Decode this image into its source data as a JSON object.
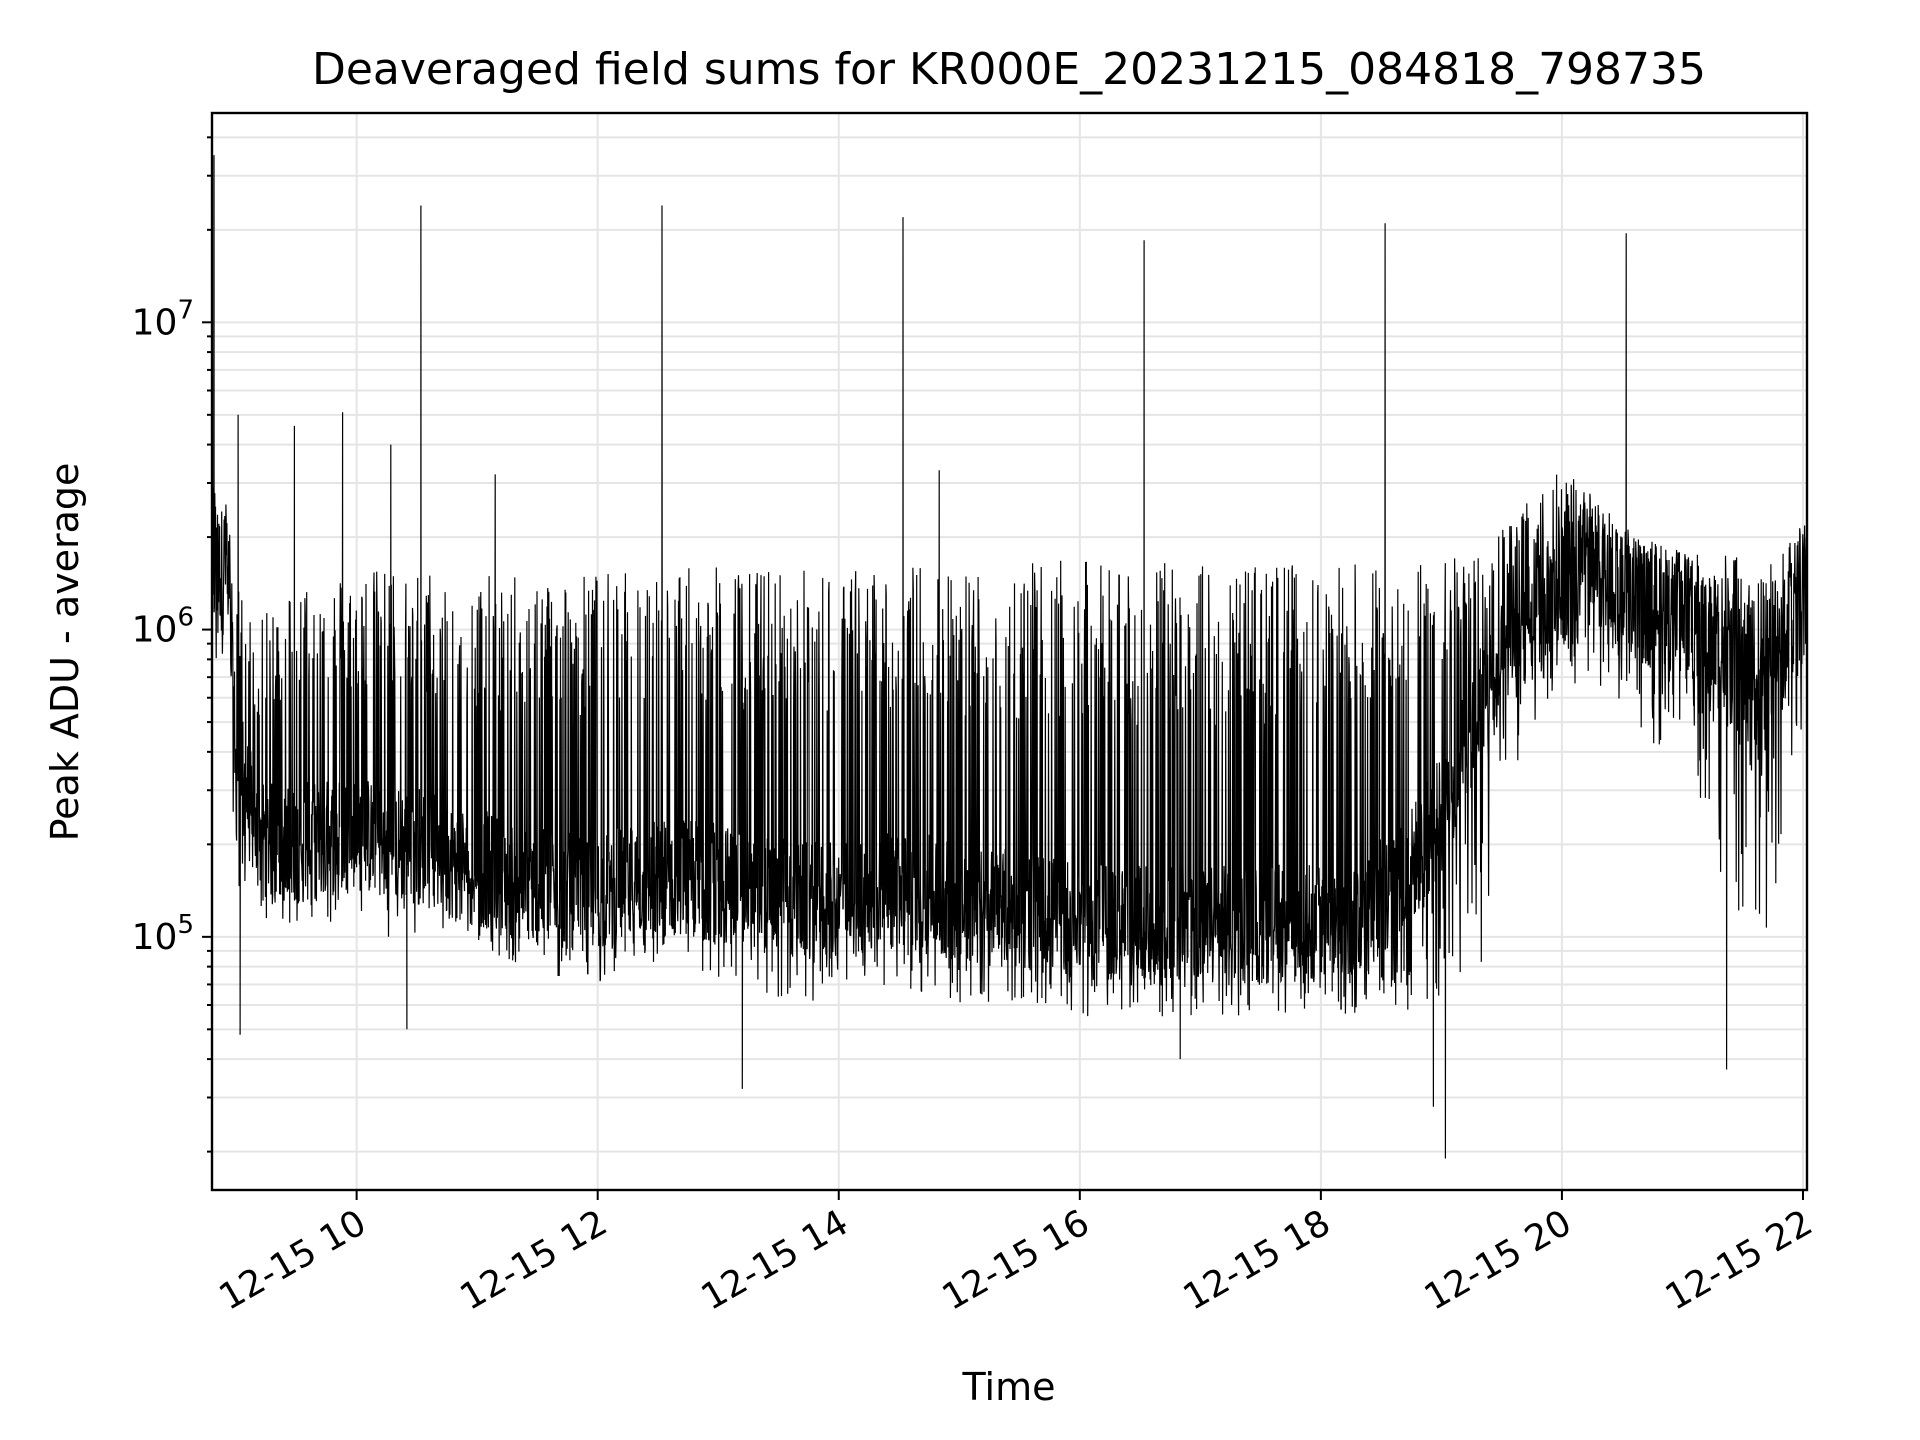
{
  "chart_data": {
    "type": "line",
    "title": "Deaveraged field sums for KR000E_20231215_084818_798735",
    "xlabel": "Time",
    "ylabel": "Peak ADU - average",
    "yscale": "log",
    "ylim": [
      15000,
      48000000
    ],
    "xlim": [
      "2023-12-15T08:48",
      "2023-12-15T22:02"
    ],
    "x_ticks": [
      {
        "value": "2023-12-15T10:00",
        "label": "12-15 10"
      },
      {
        "value": "2023-12-15T12:00",
        "label": "12-15 12"
      },
      {
        "value": "2023-12-15T14:00",
        "label": "12-15 14"
      },
      {
        "value": "2023-12-15T16:00",
        "label": "12-15 16"
      },
      {
        "value": "2023-12-15T18:00",
        "label": "12-15 18"
      },
      {
        "value": "2023-12-15T20:00",
        "label": "12-15 20"
      },
      {
        "value": "2023-12-15T22:00",
        "label": "12-15 22"
      }
    ],
    "y_ticks": [
      {
        "value": 100000,
        "base": "10",
        "exp": "5"
      },
      {
        "value": 1000000,
        "base": "10",
        "exp": "6"
      },
      {
        "value": 10000000,
        "base": "10",
        "exp": "7"
      }
    ],
    "grid": true,
    "line_color": "#000000",
    "grid_color": "#e5e5e5",
    "series": [
      {
        "x": [
          "2023-12-15T08:49",
          "2023-12-15T08:55",
          "2023-12-15T09:00",
          "2023-12-15T09:10",
          "2023-12-15T09:20",
          "2023-12-15T09:30",
          "2023-12-15T09:45",
          "2023-12-15T10:00",
          "2023-12-15T10:15",
          "2023-12-15T10:30",
          "2023-12-15T10:45",
          "2023-12-15T11:00",
          "2023-12-15T11:20",
          "2023-12-15T11:40",
          "2023-12-15T12:00",
          "2023-12-15T12:20",
          "2023-12-15T12:40",
          "2023-12-15T13:00",
          "2023-12-15T13:20",
          "2023-12-15T13:40",
          "2023-12-15T14:00",
          "2023-12-15T14:20",
          "2023-12-15T14:40",
          "2023-12-15T15:00",
          "2023-12-15T15:20",
          "2023-12-15T15:40",
          "2023-12-15T16:00",
          "2023-12-15T16:20",
          "2023-12-15T16:40",
          "2023-12-15T17:00",
          "2023-12-15T17:20",
          "2023-12-15T17:40",
          "2023-12-15T18:00",
          "2023-12-15T18:20",
          "2023-12-15T18:40",
          "2023-12-15T19:00",
          "2023-12-15T19:20",
          "2023-12-15T19:40",
          "2023-12-15T20:00",
          "2023-12-15T20:20",
          "2023-12-15T20:40",
          "2023-12-15T21:00",
          "2023-12-15T21:20",
          "2023-12-15T21:40",
          "2023-12-15T22:02"
        ],
        "low": [
          500000,
          900000,
          150000,
          120000,
          110000,
          105000,
          110000,
          110000,
          100000,
          100000,
          100000,
          95000,
          80000,
          70000,
          70000,
          75000,
          80000,
          70000,
          65000,
          60000,
          65000,
          70000,
          65000,
          60000,
          60000,
          60000,
          55000,
          55000,
          55000,
          55000,
          55000,
          55000,
          55000,
          55000,
          55000,
          60000,
          80000,
          400000,
          700000,
          600000,
          400000,
          450000,
          150000,
          80000,
          500000
        ],
        "mid": [
          1500000,
          1700000,
          400000,
          220000,
          200000,
          200000,
          210000,
          220000,
          200000,
          200000,
          180000,
          170000,
          150000,
          140000,
          140000,
          150000,
          160000,
          150000,
          140000,
          130000,
          130000,
          140000,
          140000,
          130000,
          125000,
          120000,
          115000,
          110000,
          110000,
          110000,
          110000,
          110000,
          110000,
          120000,
          150000,
          250000,
          600000,
          1000000,
          1400000,
          1400000,
          1200000,
          1100000,
          800000,
          600000,
          1300000
        ],
        "high": [
          3000000,
          2500000,
          1500000,
          1000000,
          1300000,
          1500000,
          1500000,
          1550000,
          1600000,
          1600000,
          1550000,
          1500000,
          1500000,
          1550000,
          1550000,
          1550000,
          1600000,
          1600000,
          1600000,
          1600000,
          1600000,
          1600000,
          1650000,
          1650000,
          1650000,
          1650000,
          1700000,
          1650000,
          1650000,
          1650000,
          1650000,
          1650000,
          1650000,
          1650000,
          1700000,
          1700000,
          1800000,
          2500000,
          3500000,
          2500000,
          2000000,
          1800000,
          1800000,
          1600000,
          2300000
        ],
        "spikes": [
          {
            "x": "2023-12-15T08:49",
            "y": 35000000
          },
          {
            "x": "2023-12-15T09:01",
            "y": 5000000
          },
          {
            "x": "2023-12-15T09:29",
            "y": 4600000
          },
          {
            "x": "2023-12-15T09:53",
            "y": 5100000
          },
          {
            "x": "2023-12-15T10:17",
            "y": 4000000
          },
          {
            "x": "2023-12-15T10:32",
            "y": 24000000
          },
          {
            "x": "2023-12-15T11:09",
            "y": 3200000
          },
          {
            "x": "2023-12-15T12:32",
            "y": 24000000
          },
          {
            "x": "2023-12-15T14:32",
            "y": 22000000
          },
          {
            "x": "2023-12-15T14:50",
            "y": 3300000
          },
          {
            "x": "2023-12-15T16:32",
            "y": 18500000
          },
          {
            "x": "2023-12-15T18:32",
            "y": 21000000
          },
          {
            "x": "2023-12-15T20:32",
            "y": 19500000
          }
        ],
        "dips": [
          {
            "x": "2023-12-15T09:02",
            "y": 48000
          },
          {
            "x": "2023-12-15T10:25",
            "y": 50000
          },
          {
            "x": "2023-12-15T13:12",
            "y": 32000
          },
          {
            "x": "2023-12-15T16:50",
            "y": 40000
          },
          {
            "x": "2023-12-15T18:56",
            "y": 28000
          },
          {
            "x": "2023-12-15T19:02",
            "y": 19000
          },
          {
            "x": "2023-12-15T21:22",
            "y": 37000
          }
        ]
      }
    ]
  }
}
